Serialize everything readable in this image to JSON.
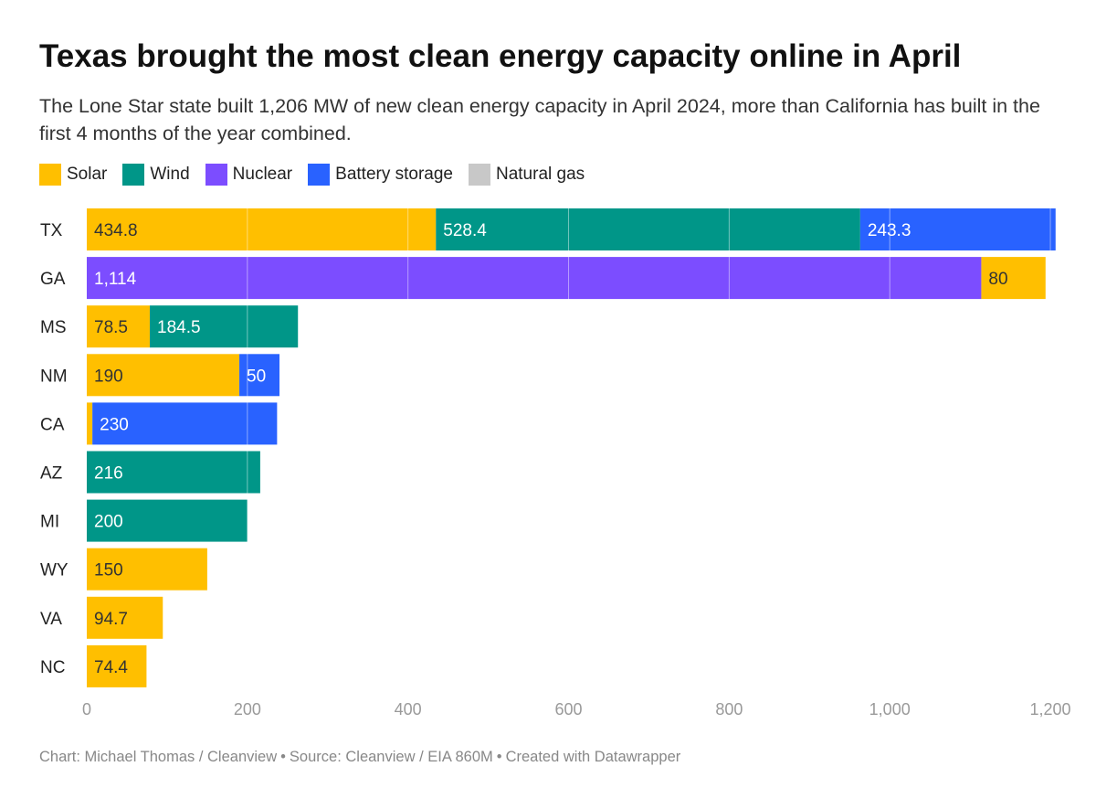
{
  "header": {
    "title": "Texas brought the most clean energy capacity online in April",
    "subtitle": "The Lone Star state built 1,206 MW of new clean energy capacity in April 2024, more than California has built in the first 4 months of the year combined."
  },
  "legend": [
    {
      "label": "Solar",
      "color": "#FFBF00"
    },
    {
      "label": "Wind",
      "color": "#009688"
    },
    {
      "label": "Nuclear",
      "color": "#7C4DFF"
    },
    {
      "label": "Battery storage",
      "color": "#2962FF"
    },
    {
      "label": "Natural gas",
      "color": "#C8C8C8"
    }
  ],
  "chart_data": {
    "type": "bar",
    "orientation": "horizontal",
    "stacked": true,
    "units": "MW",
    "categories": [
      "TX",
      "GA",
      "MS",
      "NM",
      "CA",
      "AZ",
      "MI",
      "WY",
      "VA",
      "NC"
    ],
    "series": [
      {
        "name": "Solar",
        "color": "#FFBF00",
        "values": [
          434.8,
          80,
          78.5,
          190,
          7,
          0,
          0,
          150,
          94.7,
          74.4
        ]
      },
      {
        "name": "Wind",
        "color": "#009688",
        "values": [
          528.4,
          0,
          184.5,
          0,
          0,
          216,
          200,
          0,
          0,
          0
        ]
      },
      {
        "name": "Nuclear",
        "color": "#7C4DFF",
        "values": [
          0,
          1114,
          0,
          0,
          0,
          0,
          0,
          0,
          0,
          0
        ]
      },
      {
        "name": "Battery storage",
        "color": "#2962FF",
        "values": [
          243.3,
          0,
          0,
          50,
          230,
          0,
          0,
          0,
          0,
          0
        ]
      },
      {
        "name": "Natural gas",
        "color": "#C8C8C8",
        "values": [
          0,
          0,
          0,
          0,
          0,
          0,
          0,
          0,
          0,
          0
        ]
      }
    ],
    "segment_order": [
      [
        "Solar",
        "Wind",
        "Battery storage"
      ],
      [
        "Nuclear",
        "Solar"
      ],
      [
        "Solar",
        "Wind"
      ],
      [
        "Solar",
        "Battery storage"
      ],
      [
        "Solar",
        "Battery storage"
      ],
      [
        "Wind"
      ],
      [
        "Wind"
      ],
      [
        "Solar"
      ],
      [
        "Solar"
      ],
      [
        "Solar"
      ]
    ],
    "labels": [
      [
        "434.8",
        "528.4",
        "243.3"
      ],
      [
        "1,114",
        "80"
      ],
      [
        "78.5",
        "184.5"
      ],
      [
        "190",
        "50"
      ],
      [
        "",
        "230"
      ],
      [
        "216"
      ],
      [
        "200"
      ],
      [
        "150"
      ],
      [
        "94.7"
      ],
      [
        "74.4"
      ]
    ],
    "x_ticks": [
      0,
      200,
      400,
      600,
      800,
      1000,
      1200
    ],
    "x_tick_labels": [
      "0",
      "200",
      "400",
      "600",
      "800",
      "1,000",
      "1,200"
    ],
    "xlim": [
      0,
      1200
    ],
    "grid": true,
    "legend_position": "top-left"
  },
  "footer": {
    "chart_credit": "Chart: Michael Thomas / Cleanview",
    "source": "Source: Cleanview / EIA 860M",
    "created_with": "Created with Datawrapper",
    "separator": "•"
  }
}
